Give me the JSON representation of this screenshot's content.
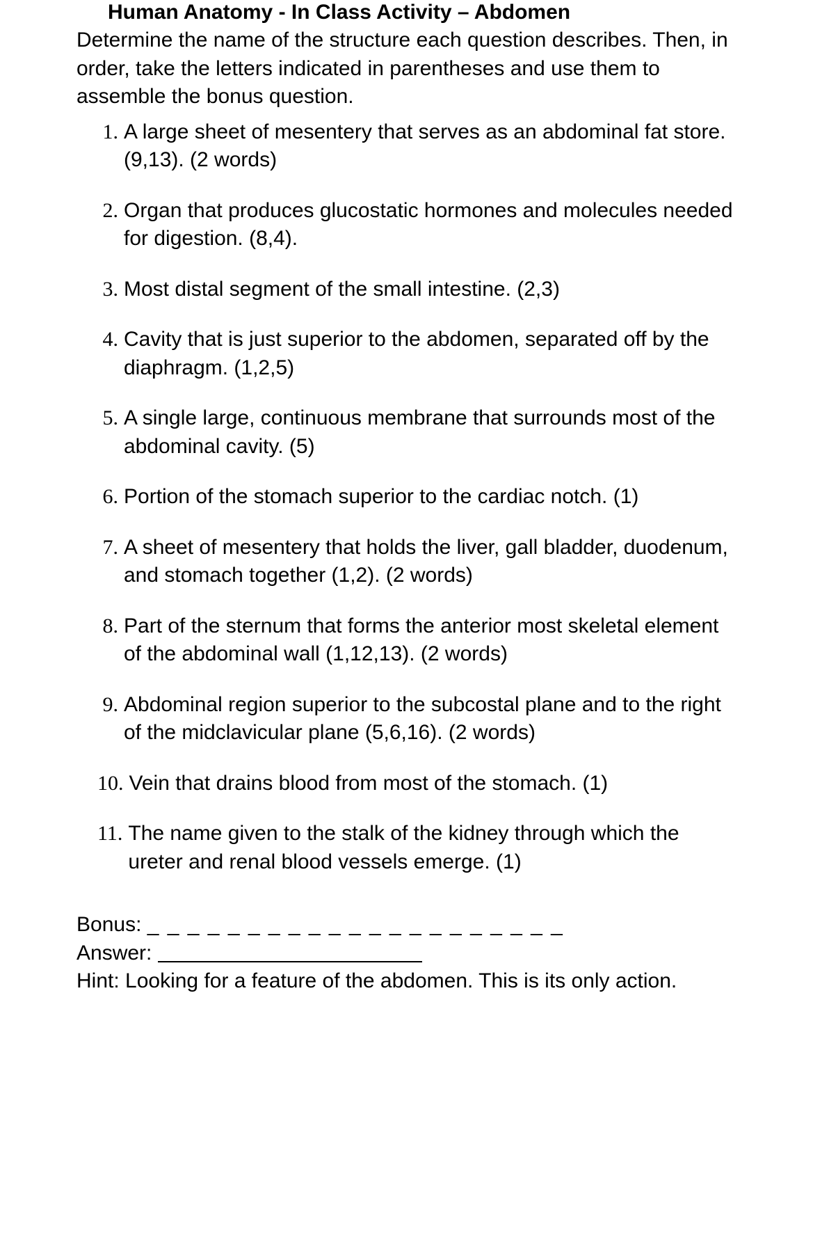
{
  "title": "Human Anatomy - In Class Activity – Abdomen",
  "instructions": "Determine the name of the structure each question describes. Then, in order, take the letters indicated in parentheses and use them to assemble the bonus question.",
  "questions": [
    {
      "num": "1.",
      "text": "A large sheet of mesentery that serves as an abdominal fat store. (9,13). (2 words)"
    },
    {
      "num": "2.",
      "text": "Organ that produces glucostatic hormones and molecules needed for digestion. (8,4)."
    },
    {
      "num": "3.",
      "text": "Most distal segment of the small intestine. (2,3)"
    },
    {
      "num": "4.",
      "text": "Cavity that is just superior to the abdomen, separated off by the diaphragm. (1,2,5)"
    },
    {
      "num": "5.",
      "text": "A single large, continuous membrane that surrounds most of the abdominal cavity. (5)"
    },
    {
      "num": "6.",
      "text": "Portion of the stomach superior to the cardiac notch. (1)"
    },
    {
      "num": "7.",
      "text": "A sheet of mesentery that holds the liver, gall bladder, duodenum, and stomach together (1,2). (2 words)"
    },
    {
      "num": "8.",
      "text": "Part of the sternum that forms the anterior most skeletal element of the abdominal wall (1,12,13). (2 words)"
    },
    {
      "num": "9.",
      "text": "Abdominal region superior to the subcostal plane and to the right of the midclavicular plane (5,6,16). (2 words)"
    },
    {
      "num": "10.",
      "text": "Vein that drains blood from most of the stomach. (1)"
    },
    {
      "num": "11.",
      "text": "The name given to the stalk of the kidney through which the ureter and renal blood vessels emerge. (1)"
    }
  ],
  "bonus": {
    "label": "Bonus:",
    "blanks": "_ _ _ _ _ _    _ _ _ _    _ _ _ _ _ _     _ _ _ _ _"
  },
  "answer": {
    "label": "Answer:"
  },
  "hint": {
    "text": "Hint: Looking for a feature of the abdomen. This is its only action."
  }
}
